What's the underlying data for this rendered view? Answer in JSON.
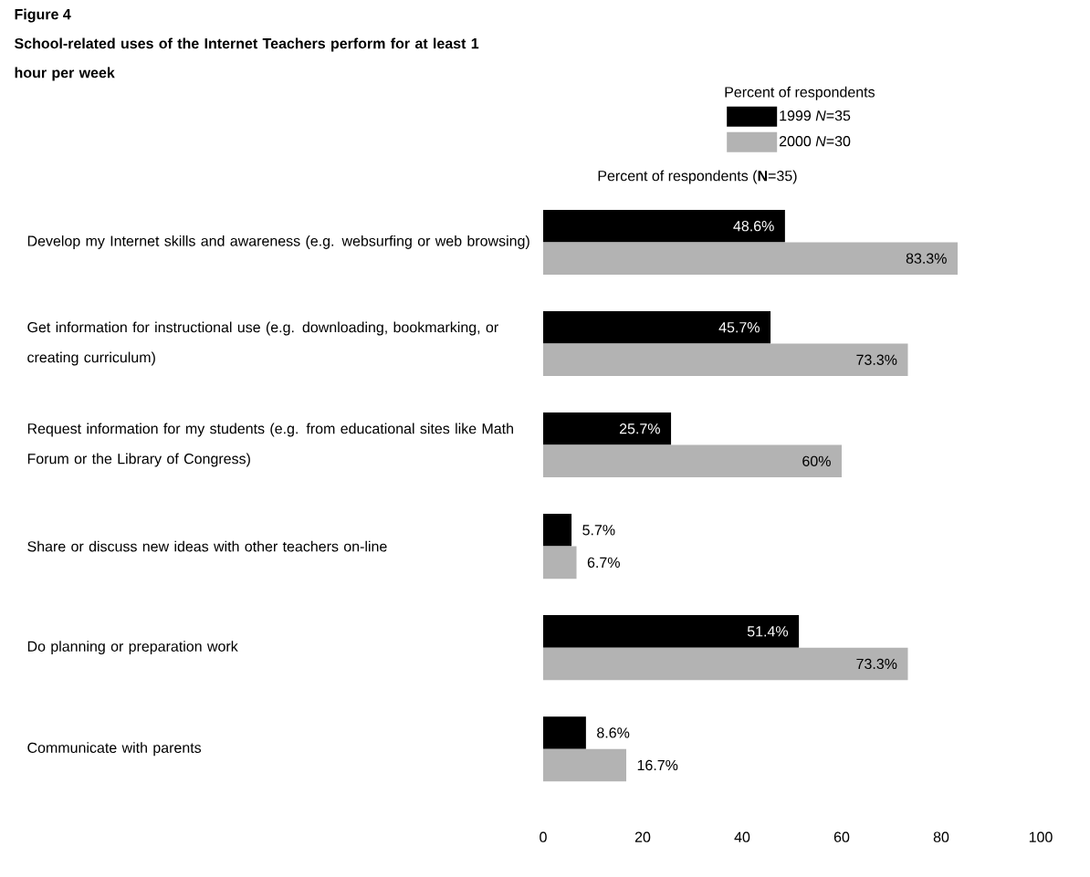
{
  "chart_data": {
    "type": "bar",
    "orientation": "horizontal",
    "title": "Figure 4",
    "subtitle": "School-related uses of the Internet Teachers perform for at least 1 hour per week",
    "legend_title": "Percent of respondents",
    "xlabel": "Percent of respondents (**N**=35)",
    "categories": [
      "Develop my Internet skills and awareness (e.g. websurfing or web browsing)",
      "Get information for instructional use (e.g. downloading, bookmarking, or creating curriculum)",
      "Request information for my students (e.g. from educational sites like Math Forum or the Library of Congress)",
      "Share or discuss new ideas with other teachers on-line",
      "Do planning or preparation work",
      "Communicate with parents"
    ],
    "series": [
      {
        "name": "1999 *N*=35",
        "color": "#000000",
        "values": [
          48.6,
          45.7,
          25.7,
          5.7,
          51.4,
          8.6
        ],
        "value_labels": [
          "48.6%",
          "45.7%",
          "25.7%",
          "5.7%",
          "51.4%",
          "8.6%"
        ]
      },
      {
        "name": "2000 *N*=30",
        "color": "#b3b3b3",
        "values": [
          83.3,
          73.3,
          60,
          6.7,
          73.3,
          16.7
        ],
        "value_labels": [
          "83.3%",
          "73.3%",
          "60%",
          "6.7%",
          "73.3%",
          "16.7%"
        ]
      }
    ],
    "xlim": [
      0,
      100
    ],
    "xticks": [
      0,
      20,
      40,
      60,
      80,
      100
    ],
    "legend": "top right"
  }
}
